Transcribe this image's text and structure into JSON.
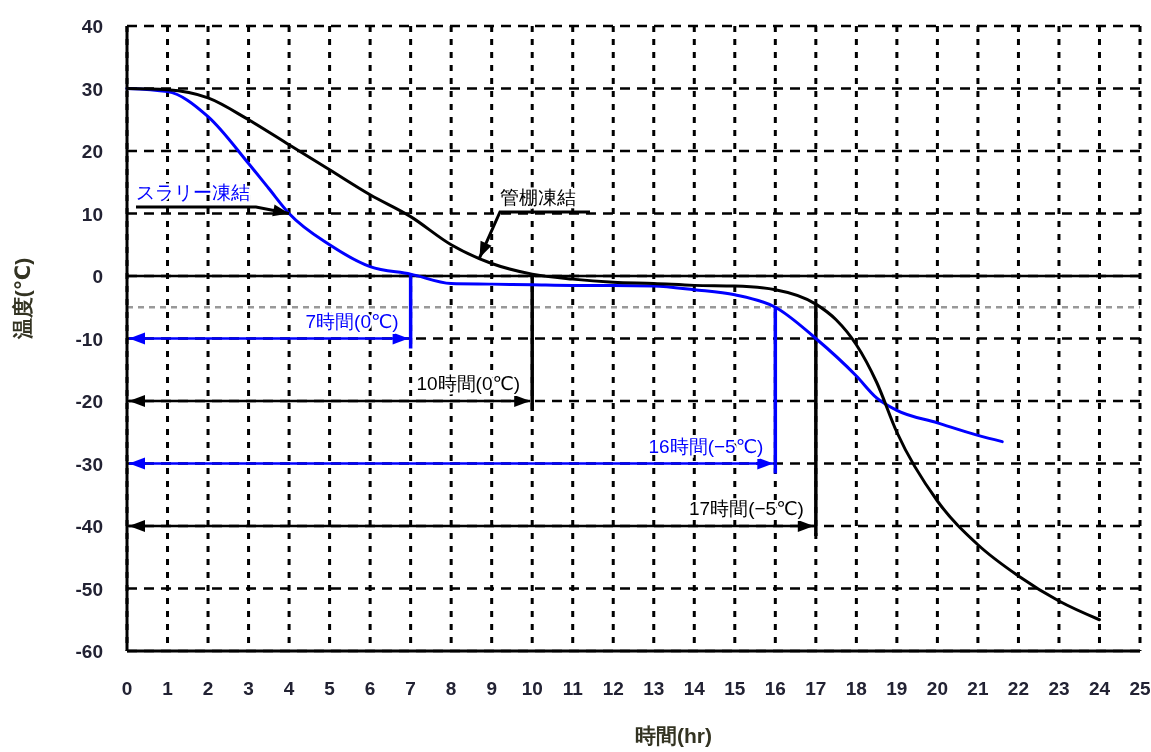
{
  "chart_data": {
    "type": "line",
    "xlabel": "時間(hr)",
    "ylabel": "温度(℃)",
    "xlim": [
      0,
      25
    ],
    "xticks": [
      0,
      1,
      2,
      3,
      4,
      5,
      6,
      7,
      8,
      9,
      10,
      11,
      12,
      13,
      14,
      15,
      16,
      17,
      18,
      19,
      20,
      21,
      22,
      23,
      24,
      25
    ],
    "ylim": [
      -60,
      40
    ],
    "yticks": [
      -60,
      -50,
      -40,
      -30,
      -20,
      -10,
      0,
      10,
      20,
      30,
      40
    ],
    "grid": true,
    "legend": false,
    "marker": "none",
    "line_style": "solid",
    "series": [
      {
        "name": "スラリー凍結",
        "color": "#0000ff",
        "x": [
          0,
          1,
          2,
          3,
          3.5,
          4,
          5,
          6,
          7,
          8,
          9,
          10,
          11,
          12,
          13,
          14,
          15,
          16,
          17,
          18,
          18.5,
          19,
          20,
          21,
          21.6
        ],
        "values": [
          30,
          29.5,
          25.5,
          18,
          14,
          10,
          5,
          1.5,
          0.3,
          -1.2,
          -1.3,
          -1.4,
          -1.5,
          -1.5,
          -1.6,
          -2.2,
          -3,
          -5,
          -10,
          -16,
          -19.5,
          -21.5,
          -23.5,
          -25.5,
          -26.5
        ]
      },
      {
        "name": "管棚凍結",
        "color": "#000000",
        "x": [
          0,
          1,
          2,
          3,
          4,
          5,
          6,
          7,
          8,
          9,
          10,
          11,
          12,
          13,
          14,
          15,
          16,
          17,
          17.5,
          18,
          18.5,
          19,
          20,
          21,
          22,
          23,
          24
        ],
        "values": [
          30,
          29.8,
          28.5,
          25,
          21,
          17,
          13,
          9.5,
          5,
          2,
          0.3,
          -0.5,
          -1,
          -1.2,
          -1.5,
          -1.6,
          -2.2,
          -4.5,
          -7,
          -11,
          -17,
          -25,
          -36,
          -43,
          -48,
          -52,
          -55
        ]
      }
    ],
    "ref_lines": [
      {
        "axis": "y",
        "value": 0,
        "color": "#000000",
        "line_style": "solid"
      },
      {
        "axis": "y",
        "value": -5,
        "color": "#999999",
        "line_style": "dashed"
      },
      {
        "axis": "x",
        "value": 7,
        "label": "7時間(0℃)",
        "color": "#0000ff"
      },
      {
        "axis": "x",
        "value": 10,
        "label": "10時間(0℃)",
        "color": "#000000"
      },
      {
        "axis": "x",
        "value": 16,
        "label": "16時間(−5℃)",
        "color": "#0000ff"
      },
      {
        "axis": "x",
        "value": 17,
        "label": "17時間(−5℃)",
        "color": "#000000"
      }
    ]
  }
}
